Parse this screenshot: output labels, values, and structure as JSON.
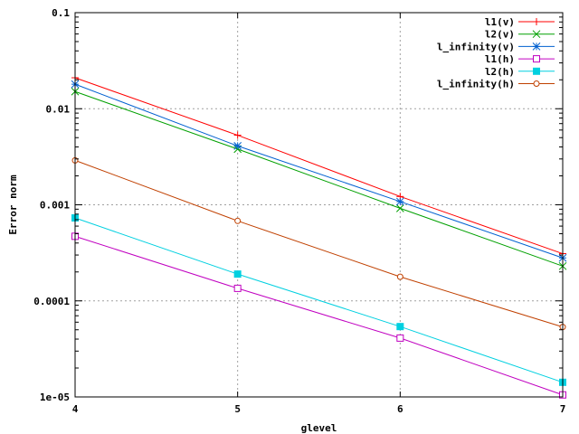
{
  "chart_data": {
    "type": "line",
    "title": "",
    "xlabel": "glevel",
    "ylabel": "Error norm",
    "xscale": "linear",
    "yscale": "log",
    "xlim": [
      4,
      7
    ],
    "ylim": [
      1e-05,
      0.1
    ],
    "grid": true,
    "legend_position": "top-right",
    "x_ticks": [
      4,
      5,
      6,
      7
    ],
    "x_tick_labels": [
      "4",
      "5",
      "6",
      "7"
    ],
    "y_ticks": [
      1e-05,
      0.0001,
      0.001,
      0.01,
      0.1
    ],
    "y_tick_labels": [
      "1e-05",
      "0.0001",
      "0.001",
      "0.01",
      "0.1"
    ],
    "x": [
      4,
      5,
      6,
      7
    ],
    "series": [
      {
        "name": "l1(v)",
        "color": "#ff0000",
        "marker": "plus",
        "values": [
          0.021,
          0.0053,
          0.00122,
          0.00031
        ]
      },
      {
        "name": "l2(v)",
        "color": "#00a000",
        "marker": "cross",
        "values": [
          0.0151,
          0.0038,
          0.00092,
          0.00023
        ]
      },
      {
        "name": "l_infinity(v)",
        "color": "#0060d0",
        "marker": "star",
        "values": [
          0.018,
          0.0041,
          0.00108,
          0.00028
        ]
      },
      {
        "name": "l1(h)",
        "color": "#c000c0",
        "marker": "open-square",
        "values": [
          0.00047,
          0.000135,
          4.1e-05,
          1.05e-05
        ]
      },
      {
        "name": "l2(h)",
        "color": "#00d0e0",
        "marker": "filled-square",
        "values": [
          0.00073,
          0.00019,
          5.4e-05,
          1.42e-05
        ]
      },
      {
        "name": "l_infinity(h)",
        "color": "#c04000",
        "marker": "open-circle",
        "values": [
          0.0029,
          0.00068,
          0.000178,
          5.35e-05
        ]
      }
    ]
  }
}
